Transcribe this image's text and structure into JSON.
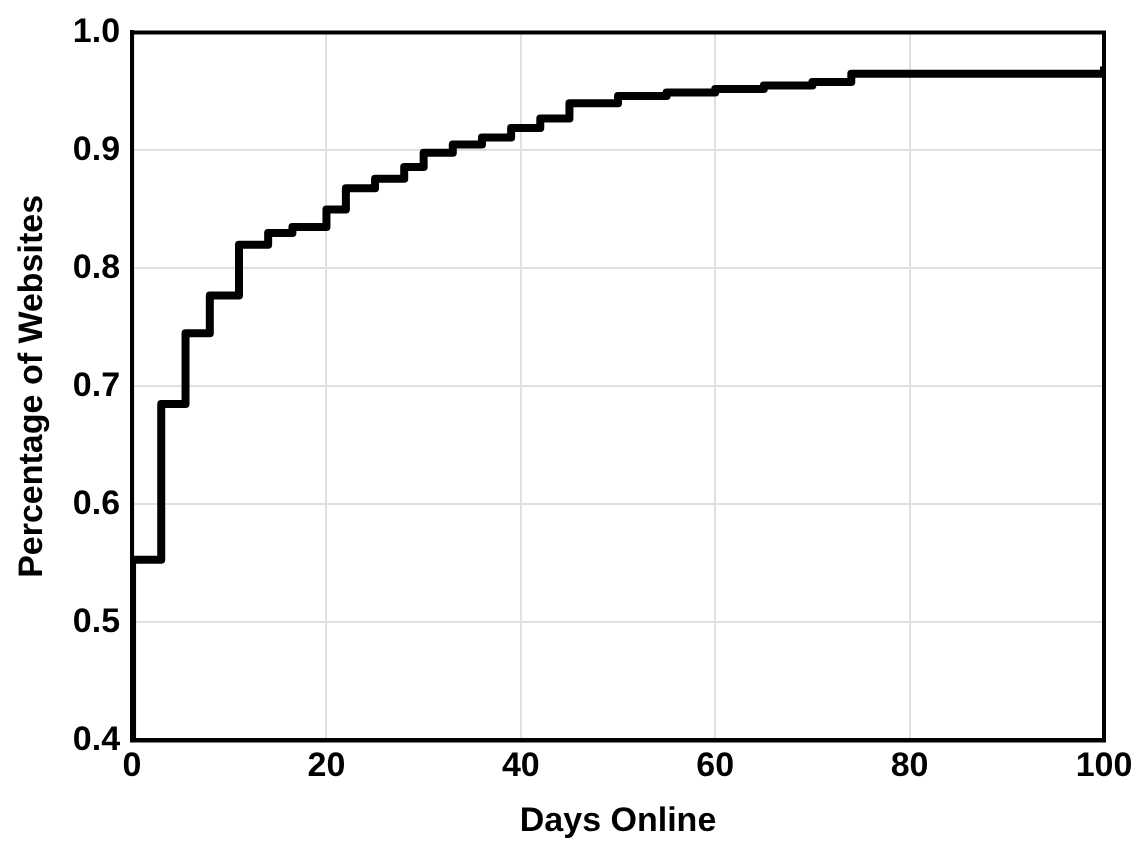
{
  "chart_data": {
    "type": "step",
    "xlabel": "Days Online",
    "ylabel": "Percentage of Websites",
    "series": [
      {
        "color": "#000000",
        "x": [
          0,
          0,
          3,
          5.5,
          8,
          11,
          14,
          16.5,
          20,
          22,
          25,
          28,
          30,
          33,
          36,
          39,
          42,
          45,
          50,
          55,
          60,
          65,
          70,
          74,
          100
        ],
        "values": [
          0.4,
          0.553,
          0.685,
          0.745,
          0.777,
          0.82,
          0.83,
          0.835,
          0.85,
          0.868,
          0.876,
          0.886,
          0.898,
          0.905,
          0.911,
          0.919,
          0.927,
          0.94,
          0.946,
          0.949,
          0.952,
          0.955,
          0.958,
          0.965,
          0.971
        ]
      }
    ],
    "xlim": [
      0,
      100
    ],
    "xticks": [
      0,
      20,
      40,
      60,
      80,
      100
    ],
    "ylim": [
      0.4,
      1.0
    ],
    "yticks": [
      0.4,
      0.5,
      0.6,
      0.7,
      0.8,
      0.9,
      {
        "value": 1.0,
        "label": "1.0"
      }
    ],
    "grid": true,
    "legend": false,
    "marker": "none",
    "line_style": "solid"
  }
}
